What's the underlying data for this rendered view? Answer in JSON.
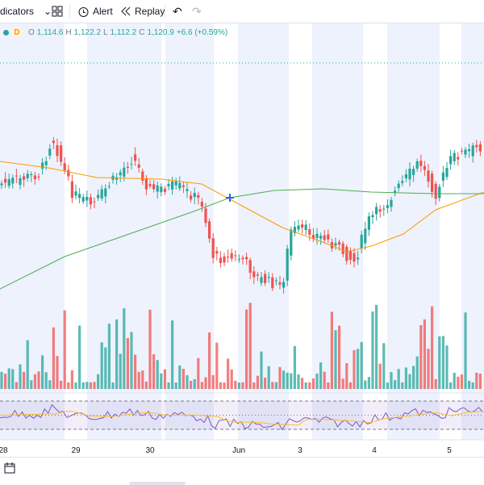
{
  "toolbar": {
    "indicators": "dicators",
    "alert": "Alert",
    "replay": "Replay"
  },
  "legend": {
    "interval": "D",
    "open_label": "O",
    "open": "1,114.6",
    "high_label": "H",
    "high": "1,122.2",
    "low_label": "L",
    "low": "1,112.2",
    "close_label": "C",
    "close": "1,120.9",
    "change": "+6.6 (+0.59%)"
  },
  "x_axis": {
    "labels": [
      "28",
      "29",
      "30",
      "Jun",
      "3",
      "4",
      "5"
    ]
  }
}
